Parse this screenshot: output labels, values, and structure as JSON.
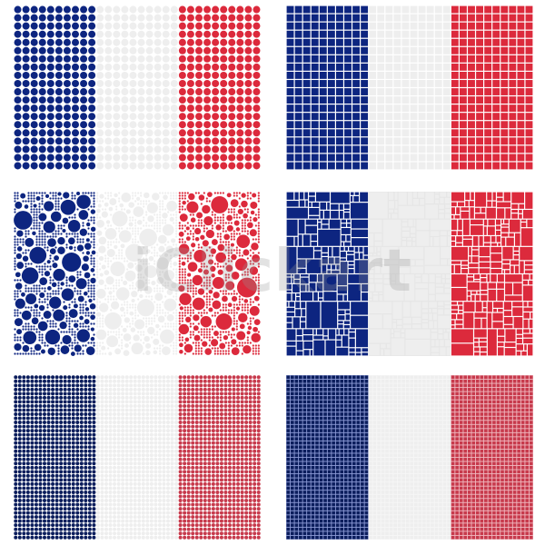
{
  "watermark": "iClickart",
  "colors": {
    "blue": "#0d2580",
    "white": "#eeeeee",
    "red": "#dc2a3c",
    "blue_dark": "#0b1d5c",
    "red_dark": "#c73a4c",
    "blue_sq_light": "#1b2f86"
  },
  "flags": [
    {
      "name": "flag-uniform-dots",
      "pattern": "dots",
      "cols_per_stripe": 10,
      "rows": 20
    },
    {
      "name": "flag-uniform-squares",
      "pattern": "squares",
      "cols_per_stripe": 10,
      "rows": 20
    },
    {
      "name": "flag-random-circles",
      "pattern": "random-circles"
    },
    {
      "name": "flag-random-rectangles",
      "pattern": "random-rectangles"
    },
    {
      "name": "flag-fine-dots",
      "pattern": "fine-dots",
      "cols_per_stripe": 20,
      "rows": 40
    },
    {
      "name": "flag-fine-squares",
      "pattern": "fine-squares",
      "cols_per_stripe": 20,
      "rows": 40
    }
  ]
}
